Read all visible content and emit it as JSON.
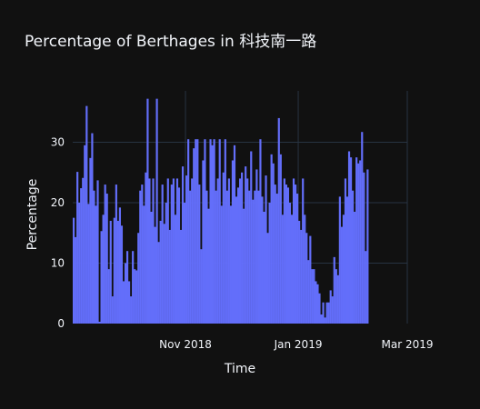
{
  "chart_data": {
    "type": "bar",
    "title": "Percentage of Berthages in 科技南一路",
    "xlabel": "Time",
    "ylabel": "Percentage",
    "ylim": [
      0,
      38.5
    ],
    "yticks": [
      0,
      10,
      20,
      30
    ],
    "xlim": [
      "2018-09-01",
      "2019-03-01"
    ],
    "xticks": [
      {
        "date": "2018-11-01",
        "label": "Nov 2018"
      },
      {
        "date": "2019-01-01",
        "label": "Jan 2019"
      },
      {
        "date": "2019-03-01",
        "label": "Mar 2019"
      }
    ],
    "grid": true,
    "colors": {
      "bar": "#636efa",
      "background": "#111111",
      "grid": "#283442"
    },
    "series": [
      {
        "x_start": "2018-09-01",
        "x_step_days": 1,
        "values": [
          17.5,
          14.3,
          25.1,
          20.0,
          22.4,
          24.1,
          29.5,
          36.0,
          19.8,
          27.4,
          31.5,
          22.0,
          19.5,
          23.7,
          0.3,
          15.3,
          18.0,
          23.0,
          21.5,
          9.0,
          17.0,
          4.5,
          17.5,
          23.0,
          17.0,
          19.2,
          16.2,
          7.0,
          10.0,
          12.0,
          7.0,
          4.5,
          12.0,
          9.0,
          8.8,
          15.0,
          22.0,
          23.0,
          19.5,
          25.0,
          37.2,
          24.0,
          18.5,
          24.0,
          16.0,
          37.2,
          13.5,
          17.0,
          23.0,
          16.5,
          20.0,
          24.0,
          15.5,
          23.0,
          24.0,
          18.0,
          24.0,
          22.5,
          15.5,
          26.0,
          20.0,
          24.5,
          30.5,
          22.0,
          24.0,
          29.0,
          30.5,
          30.5,
          23.0,
          12.3,
          27.0,
          30.5,
          22.0,
          19.0,
          30.5,
          29.5,
          30.5,
          22.0,
          24.0,
          30.5,
          19.5,
          25.0,
          30.5,
          22.0,
          24.0,
          19.5,
          27.0,
          29.5,
          21.0,
          22.5,
          24.0,
          25.0,
          19.0,
          26.0,
          24.0,
          22.0,
          28.5,
          20.5,
          22.0,
          25.5,
          22.0,
          30.5,
          21.0,
          18.5,
          24.5,
          15.0,
          20.0,
          28.0,
          26.5,
          23.0,
          21.5,
          34.0,
          28.0,
          18.0,
          24.0,
          23.0,
          22.5,
          20.0,
          18.0,
          24.0,
          23.0,
          21.5,
          17.0,
          15.5,
          24.0,
          18.0,
          15.0,
          10.5,
          14.5,
          9.0,
          9.0,
          7.0,
          6.5,
          5.0,
          1.5,
          3.5,
          1.0,
          3.5,
          3.5,
          5.5,
          4.5,
          11.0,
          9.0,
          8.0,
          21.0,
          16.0,
          18.0,
          24.0,
          21.0,
          28.5,
          27.5,
          22.0,
          18.5,
          27.5,
          26.5,
          27.0,
          31.7,
          25.0,
          12.0,
          25.5
        ]
      }
    ]
  }
}
